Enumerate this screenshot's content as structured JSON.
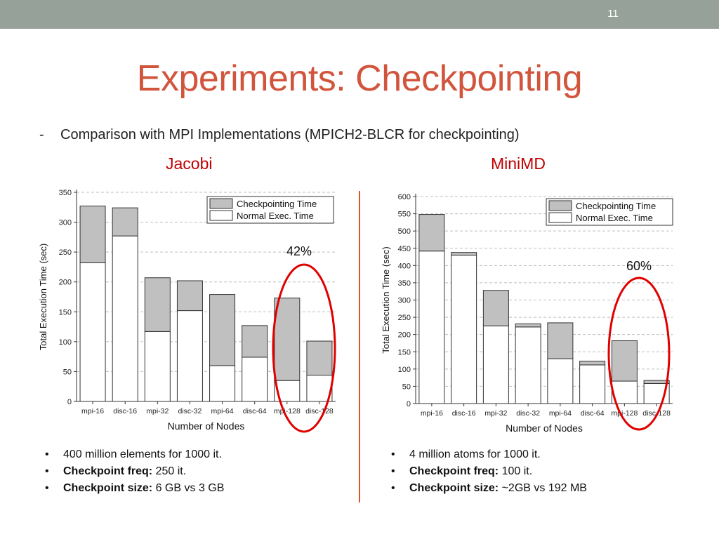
{
  "slide": {
    "number": "11",
    "title": "Experiments: Checkpointing",
    "subtitle_dash": "-",
    "subtitle": "Comparison with MPI Implementations (MPICH2-BLCR for checkpointing)",
    "bullet_glyph": "•"
  },
  "left": {
    "heading": "Jacobi",
    "bullets": [
      {
        "bold": "",
        "text": "400 million elements for 1000 it."
      },
      {
        "bold": "Checkpoint freq:",
        "text": " 250 it."
      },
      {
        "bold": "Checkpoint size:",
        "text": " 6 GB vs 3 GB"
      }
    ]
  },
  "right": {
    "heading": "MiniMD",
    "bullets": [
      {
        "bold": "",
        "text": "4 million atoms for 1000 it."
      },
      {
        "bold": "Checkpoint freq:",
        "text": " 100 it."
      },
      {
        "bold": "Checkpoint size:",
        "text": " ~2GB vs 192 MB"
      }
    ]
  },
  "colors": {
    "title": "#d1553c",
    "heading": "#c00000",
    "ellipse": "#e00000",
    "checkpoint_fill": "#c0c0c0",
    "normal_fill": "#ffffff",
    "topbar": "#95a199"
  },
  "chart_data": [
    {
      "type": "bar",
      "stacked": true,
      "categories": [
        "mpi-16",
        "disc-16",
        "mpi-32",
        "disc-32",
        "mpi-64",
        "disc-64",
        "mpi-128",
        "disc-128"
      ],
      "series": [
        {
          "name": "Normal Exec. Time",
          "values": [
            232,
            277,
            117,
            152,
            60,
            74,
            35,
            44
          ]
        },
        {
          "name": "Checkpointing Time",
          "values": [
            95,
            47,
            90,
            50,
            119,
            53,
            138,
            57
          ]
        }
      ],
      "xlabel": "Number of Nodes",
      "ylabel": "Total Execution Time (sec)",
      "ylim": [
        0,
        350
      ],
      "yticks": [
        0,
        50,
        100,
        150,
        200,
        250,
        300,
        350
      ],
      "grid": true,
      "legend": "top-right",
      "annotation": {
        "text": "42%",
        "highlight": [
          "mpi-128",
          "disc-128"
        ]
      }
    },
    {
      "type": "bar",
      "stacked": true,
      "categories": [
        "mpi-16",
        "disc-16",
        "mpi-32",
        "disc-32",
        "mpi-64",
        "disc-64",
        "mpi-128",
        "disc-128"
      ],
      "series": [
        {
          "name": "Normal Exec. Time",
          "values": [
            442,
            430,
            225,
            222,
            130,
            112,
            65,
            58
          ]
        },
        {
          "name": "Checkpointing Time",
          "values": [
            106,
            8,
            103,
            9,
            104,
            11,
            117,
            9
          ]
        }
      ],
      "xlabel": "Number of Nodes",
      "ylabel": "Total Execution Time (sec)",
      "ylim": [
        0,
        600
      ],
      "yticks": [
        0,
        50,
        100,
        150,
        200,
        250,
        300,
        350,
        400,
        450,
        500,
        550,
        600
      ],
      "grid": true,
      "legend": "top-right",
      "annotation": {
        "text": "60%",
        "highlight": [
          "mpi-128",
          "disc-128"
        ]
      }
    }
  ]
}
